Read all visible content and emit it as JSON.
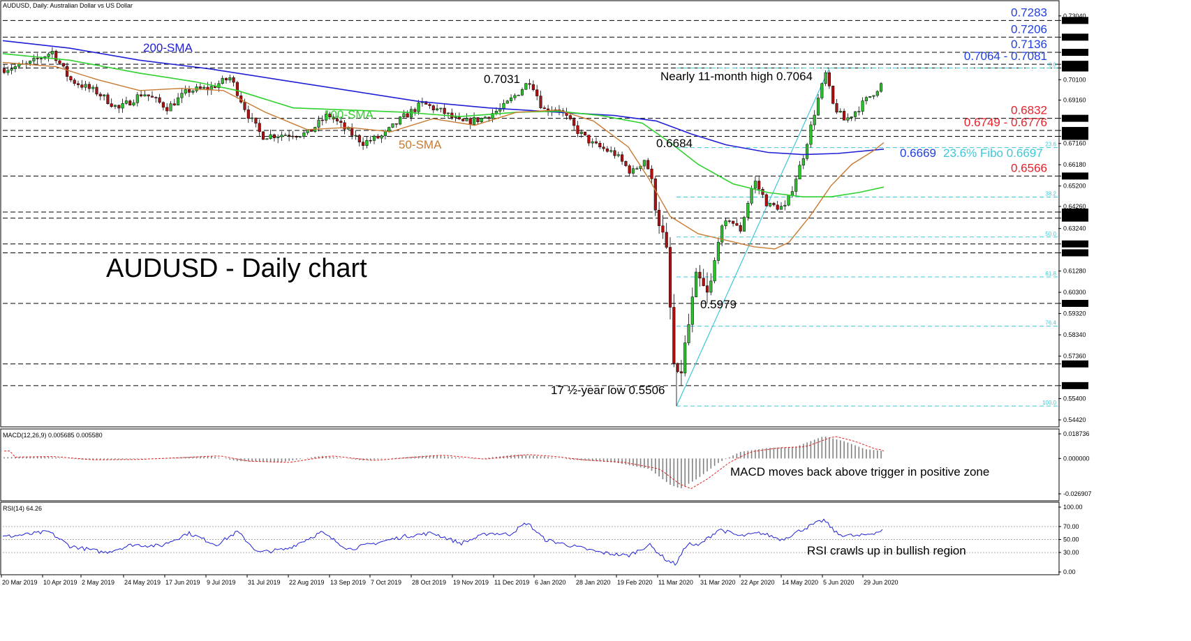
{
  "header": {
    "main": "AUDUSD, Daily:  Australian Dollar vs US Dollar",
    "macd": "MACD(12,26,9) 0.005685 0.005580",
    "rsi": "RSI(14) 64.26"
  },
  "chart_data": {
    "type": "candlestick",
    "title": "AUDUSD - Daily chart",
    "ylim": [
      0.5442,
      0.7313
    ],
    "price_axis_ticks": [
      "0.73040",
      "0.72830",
      "0.72060",
      "0.71360",
      "0.70810",
      "0.70640",
      "0.70100",
      "0.69160",
      "0.68320",
      "0.67760",
      "0.67490",
      "0.67160",
      "0.66180",
      "0.65660",
      "0.65200",
      "0.64260",
      "0.64000",
      "0.63720",
      "0.63240",
      "0.62530",
      "0.62120",
      "0.61280",
      "0.60300",
      "0.59790",
      "0.59320",
      "0.58340",
      "0.57360",
      "0.57000",
      "0.56000",
      "0.55400",
      "0.54420"
    ],
    "x_axis_labels": [
      "20 Mar 2019",
      "10 Apr 2019",
      "2 May 2019",
      "24 May 2019",
      "17 Jun 2019",
      "9 Jul 2019",
      "31 Jul 2019",
      "22 Aug 2019",
      "13 Sep 2019",
      "7 Oct 2019",
      "28 Oct 2019",
      "19 Nov 2019",
      "11 Dec 2019",
      "6 Jan 2020",
      "28 Jan 2020",
      "19 Feb 2020",
      "11 Mar 2020",
      "31 Mar 2020",
      "22 Apr 2020",
      "14 May 2020",
      "5 Jun 2020",
      "29 Jun 2020"
    ],
    "horizontal_levels": [
      {
        "label": "0.7283",
        "value": 0.7283,
        "color": "#1f3fe0"
      },
      {
        "label": "0.7206",
        "value": 0.7206,
        "color": "#1f3fe0"
      },
      {
        "label": "0.7136",
        "value": 0.7136,
        "color": "#1f3fe0"
      },
      {
        "label": "0.7064 - 0.7081",
        "value": 0.7081,
        "value2": 0.7064,
        "color": "#1f3fe0"
      },
      {
        "label": "0.6832",
        "value": 0.6832,
        "color": "#e8202a"
      },
      {
        "label": "0.6749 - 0.6776",
        "value": 0.6776,
        "value2": 0.6749,
        "color": "#e8202a"
      },
      {
        "label": "0.6566",
        "value": 0.6566,
        "color": "#e8202a"
      },
      {
        "value": 0.64
      },
      {
        "value": 0.6372
      },
      {
        "value": 0.6253
      },
      {
        "value": 0.6212
      },
      {
        "value": 0.5979
      },
      {
        "value": 0.57
      },
      {
        "value": 0.56
      }
    ],
    "fibonacci": {
      "low": 0.5506,
      "high": 0.7064,
      "levels": [
        {
          "label": "0.0",
          "value": 0.7064
        },
        {
          "label": "23.6",
          "value": 0.6697
        },
        {
          "label": "38.2",
          "value": 0.6469
        },
        {
          "label": "50.0",
          "value": 0.6285
        },
        {
          "label": "61.8",
          "value": 0.6101
        },
        {
          "label": "76.4",
          "value": 0.5874
        },
        {
          "label": "100.0",
          "value": 0.5506
        }
      ]
    },
    "sma_labels": {
      "sma200": "200-SMA",
      "sma100": "100-SMA",
      "sma50": "50-SMA"
    },
    "annotations": {
      "high_0_7031": "0.7031",
      "high_11m": "Nearly 11-month high 0.7064",
      "low_0_6684": "0.6684",
      "low_0_5979": "0.5979",
      "low_17y": "17 ½-year low 0.5506",
      "sma200_value": "0.6669",
      "fibo_236_text": "23.6% Fibo 0.6697"
    },
    "macd": {
      "value": 0.005685,
      "signal": 0.00558,
      "ylim": [
        -0.026907,
        0.018736
      ],
      "ticks": [
        "0.018736",
        "0.000000",
        "-0.026907"
      ],
      "note": "MACD moves back above trigger in positive zone"
    },
    "rsi": {
      "value": 64.26,
      "ylim": [
        0,
        100
      ],
      "ticks": [
        "100.00",
        "70.00",
        "50.00",
        "30.00",
        "0.00"
      ],
      "note": "RSI crawls up in bullish region"
    },
    "colors": {
      "sma200": "#1f1fd6",
      "sma100": "#2ed12e",
      "sma50": "#c87a32",
      "fibo": "#3cc8d8",
      "bull": "#2ec02e",
      "bear": "#b01010"
    }
  }
}
